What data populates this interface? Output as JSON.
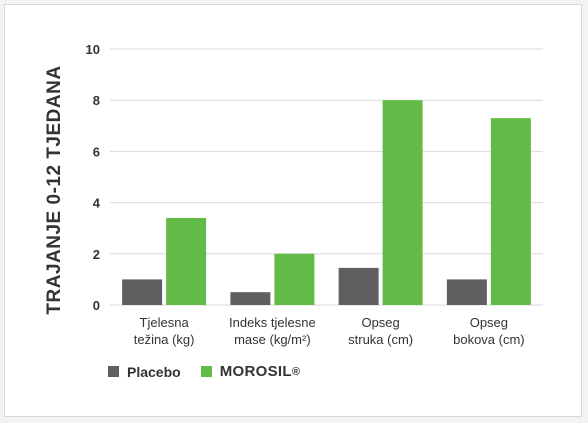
{
  "colors": {
    "placebo": "#5f5f5f",
    "morosil": "#63bb47",
    "grid": "#d9d9d9",
    "text": "#333333"
  },
  "chart_data": {
    "type": "bar",
    "ylabel": "TRAJANJE 0-12 TJEDANA",
    "xlabel": "",
    "ylim": [
      0,
      10
    ],
    "yticks": [
      0,
      2,
      4,
      6,
      8,
      10
    ],
    "grid": true,
    "legend_position": "bottom-left",
    "categories": [
      [
        "Tjelesna",
        "težina (kg)"
      ],
      [
        "Indeks tjelesne",
        "mase (kg/m²)"
      ],
      [
        "Opseg",
        "struka (cm)"
      ],
      [
        "Opseg",
        "bokova (cm)"
      ]
    ],
    "series": [
      {
        "name": "Placebo",
        "values": [
          1.0,
          0.5,
          1.45,
          1.0
        ]
      },
      {
        "name": "MOROSIL",
        "values": [
          3.4,
          2.0,
          8.0,
          7.3
        ]
      }
    ]
  },
  "legend": {
    "placebo_label": "Placebo",
    "morosil_label": "MOROSIL",
    "morosil_mark": "®"
  }
}
